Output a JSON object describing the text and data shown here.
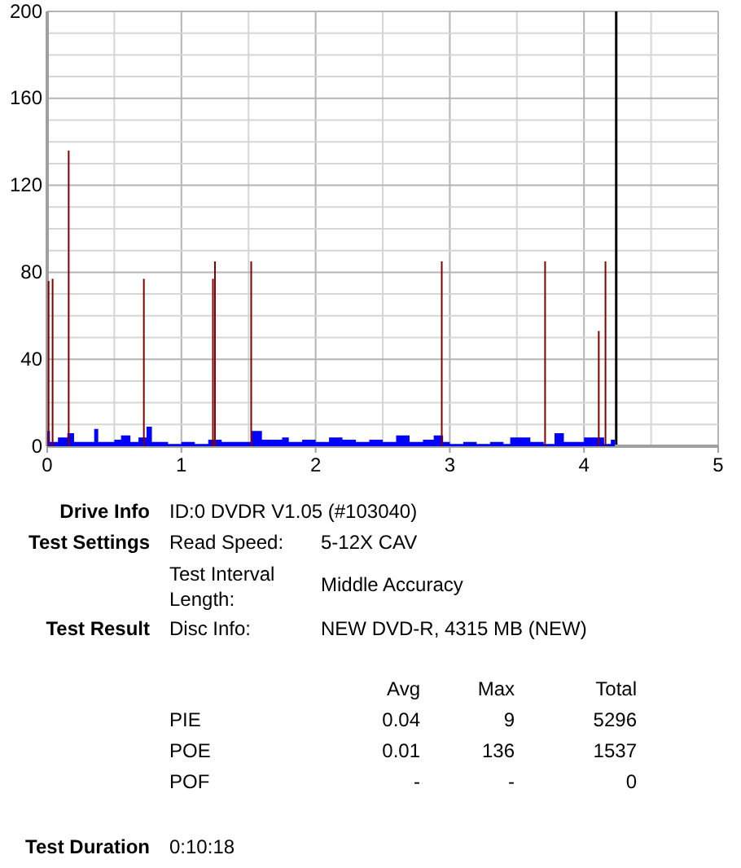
{
  "chart_data": {
    "type": "bar",
    "xlim": [
      0,
      5
    ],
    "xticks": [
      0,
      {
        "value": 0.5,
        "label": null
      },
      1,
      {
        "value": 1.5,
        "label": null
      },
      2,
      {
        "value": 2.5,
        "label": null
      },
      3,
      {
        "value": 3.5,
        "label": null
      },
      4,
      {
        "value": 4.5,
        "label": null
      },
      5
    ],
    "ylim": [
      0,
      200
    ],
    "yticks": [
      0,
      {
        "value": 10,
        "label": null
      },
      {
        "value": 20,
        "label": null
      },
      {
        "value": 30,
        "label": null
      },
      40,
      {
        "value": 50,
        "label": null
      },
      {
        "value": 60,
        "label": null
      },
      {
        "value": 70,
        "label": null
      },
      80,
      {
        "value": 90,
        "label": null
      },
      {
        "value": 100,
        "label": null
      },
      {
        "value": 110,
        "label": null
      },
      120,
      {
        "value": 130,
        "label": null
      },
      {
        "value": 140,
        "label": null
      },
      {
        "value": 150,
        "label": null
      },
      160,
      {
        "value": 170,
        "label": null
      },
      {
        "value": 180,
        "label": null
      },
      {
        "value": 190,
        "label": null
      },
      200
    ],
    "grid": true,
    "series": [
      {
        "type": "area",
        "color": "#0000ff",
        "x": [
          0,
          0.02,
          0.08,
          0.15,
          0.2,
          0.3,
          0.35,
          0.38,
          0.5,
          0.55,
          0.62,
          0.68,
          0.74,
          0.78,
          0.9,
          1.0,
          1.1,
          1.2,
          1.3,
          1.4,
          1.52,
          1.6,
          1.75,
          1.8,
          1.9,
          2.0,
          2.1,
          2.2,
          2.3,
          2.4,
          2.5,
          2.6,
          2.7,
          2.8,
          2.88,
          2.95,
          3.0,
          3.1,
          3.2,
          3.3,
          3.4,
          3.45,
          3.6,
          3.7,
          3.78,
          3.85,
          3.9,
          4.0,
          4.1,
          4.15,
          4.2,
          4.23
        ],
        "values": [
          7,
          2,
          4,
          6,
          2,
          2,
          8,
          2,
          3,
          5,
          2,
          4,
          9,
          2,
          1,
          2,
          1,
          3,
          2,
          2,
          7,
          3,
          4,
          2,
          3,
          2,
          4,
          3,
          2,
          3,
          2,
          5,
          2,
          3,
          5,
          2,
          1,
          2,
          1,
          2,
          1,
          4,
          2,
          1,
          6,
          2,
          2,
          4,
          4,
          1,
          3,
          3
        ]
      },
      {
        "color": "#800000",
        "x": [
          0.01,
          0.04,
          0.16,
          0.72,
          1.235,
          1.25,
          1.52,
          2.94,
          3.71,
          4.11,
          4.16
        ],
        "values": [
          76,
          77,
          136,
          77,
          77,
          85,
          85,
          85,
          85,
          53,
          85
        ]
      }
    ],
    "ref_lines": [
      {
        "axis": "x",
        "value": 4.24,
        "color": "#000000"
      }
    ],
    "annotations": [
      "Drive Info",
      "ID:0 DVDR V1.05 (#103040)",
      "Test Settings",
      "Read Speed:",
      "5-12X CAV",
      "Test Interval Length:",
      "Middle Accuracy",
      "Test Result",
      "Disc Info:",
      "NEW DVD-R, 4315 MB (NEW)",
      "Avg",
      "Max",
      "Total",
      "PIE",
      "0.04",
      "9",
      "5296",
      "POE",
      "0.01",
      "136",
      "1537",
      "POF",
      "-",
      "-",
      "0",
      "Test Duration",
      "0:10:18"
    ]
  }
}
